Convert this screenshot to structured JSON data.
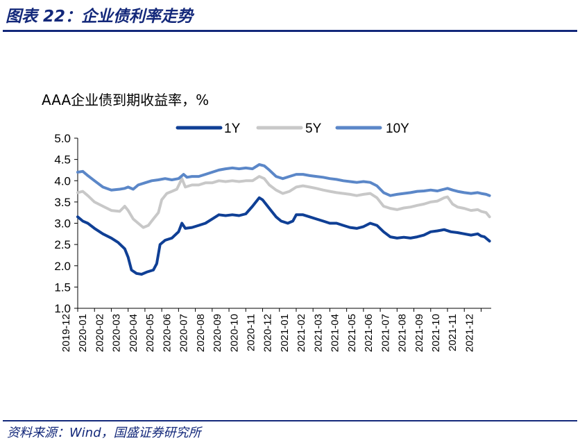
{
  "header": {
    "title": "图表 22：企业债利率走势"
  },
  "footer": {
    "source": "资料来源：Wind，国盛证券研究所"
  },
  "chart_data": {
    "type": "line",
    "title": "AAA企业债到期收益率，%",
    "ylim": [
      1.0,
      5.0
    ],
    "yticks": [
      "5.0",
      "4.5",
      "4.0",
      "3.5",
      "3.0",
      "2.5",
      "2.0",
      "1.5",
      "1.0"
    ],
    "ytick_values": [
      5.0,
      4.5,
      4.0,
      3.5,
      3.0,
      2.5,
      2.0,
      1.5,
      1.0
    ],
    "xticks": [
      "2019-12",
      "2020-01",
      "2020-02",
      "2020-03",
      "2020-04",
      "2020-05",
      "2020-06",
      "2020-07",
      "2020-08",
      "2020-09",
      "2020-10",
      "2020-11",
      "2020-12",
      "2021-01",
      "2021-02",
      "2021-03",
      "2021-04",
      "2021-05",
      "2021-06",
      "2021-07",
      "2021-08",
      "2021-09",
      "2021-10",
      "2021-11",
      "2021-12"
    ],
    "x_range": [
      0,
      24.6
    ],
    "legend_position": "top",
    "series": [
      {
        "name": "1Y",
        "color": "#0f3f95",
        "points": [
          [
            0,
            3.15
          ],
          [
            0.3,
            3.05
          ],
          [
            0.6,
            3.0
          ],
          [
            1.0,
            2.88
          ],
          [
            1.5,
            2.75
          ],
          [
            2.0,
            2.65
          ],
          [
            2.4,
            2.55
          ],
          [
            2.8,
            2.4
          ],
          [
            3.0,
            2.2
          ],
          [
            3.2,
            1.9
          ],
          [
            3.5,
            1.82
          ],
          [
            3.8,
            1.8
          ],
          [
            4.1,
            1.85
          ],
          [
            4.5,
            1.9
          ],
          [
            4.7,
            2.05
          ],
          [
            4.9,
            2.5
          ],
          [
            5.2,
            2.6
          ],
          [
            5.6,
            2.65
          ],
          [
            6.0,
            2.8
          ],
          [
            6.2,
            3.0
          ],
          [
            6.4,
            2.88
          ],
          [
            6.8,
            2.9
          ],
          [
            7.2,
            2.95
          ],
          [
            7.6,
            3.0
          ],
          [
            8.0,
            3.1
          ],
          [
            8.4,
            3.2
          ],
          [
            8.8,
            3.18
          ],
          [
            9.2,
            3.2
          ],
          [
            9.6,
            3.18
          ],
          [
            10.0,
            3.22
          ],
          [
            10.4,
            3.4
          ],
          [
            10.8,
            3.6
          ],
          [
            11.0,
            3.55
          ],
          [
            11.2,
            3.45
          ],
          [
            11.5,
            3.3
          ],
          [
            11.8,
            3.15
          ],
          [
            12.1,
            3.05
          ],
          [
            12.5,
            3.0
          ],
          [
            12.8,
            3.05
          ],
          [
            13.0,
            3.2
          ],
          [
            13.4,
            3.2
          ],
          [
            13.8,
            3.15
          ],
          [
            14.2,
            3.1
          ],
          [
            14.6,
            3.05
          ],
          [
            15.0,
            3.0
          ],
          [
            15.4,
            3.0
          ],
          [
            15.8,
            2.95
          ],
          [
            16.2,
            2.9
          ],
          [
            16.6,
            2.88
          ],
          [
            17.0,
            2.92
          ],
          [
            17.4,
            3.0
          ],
          [
            17.8,
            2.95
          ],
          [
            18.2,
            2.8
          ],
          [
            18.6,
            2.68
          ],
          [
            19.0,
            2.65
          ],
          [
            19.4,
            2.67
          ],
          [
            19.8,
            2.65
          ],
          [
            20.2,
            2.68
          ],
          [
            20.6,
            2.72
          ],
          [
            21.0,
            2.8
          ],
          [
            21.4,
            2.82
          ],
          [
            21.8,
            2.85
          ],
          [
            22.2,
            2.8
          ],
          [
            22.6,
            2.78
          ],
          [
            23.0,
            2.75
          ],
          [
            23.4,
            2.72
          ],
          [
            23.8,
            2.75
          ],
          [
            24.0,
            2.7
          ],
          [
            24.2,
            2.68
          ],
          [
            24.5,
            2.58
          ]
        ]
      },
      {
        "name": "5Y",
        "color": "#c8c8c8",
        "points": [
          [
            0,
            3.72
          ],
          [
            0.3,
            3.75
          ],
          [
            0.6,
            3.65
          ],
          [
            1.0,
            3.5
          ],
          [
            1.5,
            3.4
          ],
          [
            2.0,
            3.3
          ],
          [
            2.5,
            3.28
          ],
          [
            2.8,
            3.4
          ],
          [
            3.0,
            3.3
          ],
          [
            3.3,
            3.1
          ],
          [
            3.6,
            3.0
          ],
          [
            3.9,
            2.9
          ],
          [
            4.2,
            2.95
          ],
          [
            4.5,
            3.1
          ],
          [
            4.8,
            3.25
          ],
          [
            5.0,
            3.55
          ],
          [
            5.3,
            3.7
          ],
          [
            5.6,
            3.75
          ],
          [
            5.9,
            3.8
          ],
          [
            6.2,
            4.05
          ],
          [
            6.4,
            3.85
          ],
          [
            6.8,
            3.9
          ],
          [
            7.2,
            3.9
          ],
          [
            7.6,
            3.95
          ],
          [
            8.0,
            3.95
          ],
          [
            8.4,
            4.0
          ],
          [
            8.8,
            3.98
          ],
          [
            9.2,
            4.0
          ],
          [
            9.6,
            3.98
          ],
          [
            10.0,
            4.0
          ],
          [
            10.4,
            4.0
          ],
          [
            10.8,
            4.1
          ],
          [
            11.1,
            4.05
          ],
          [
            11.4,
            3.9
          ],
          [
            11.8,
            3.78
          ],
          [
            12.2,
            3.7
          ],
          [
            12.6,
            3.75
          ],
          [
            13.0,
            3.85
          ],
          [
            13.4,
            3.88
          ],
          [
            13.8,
            3.85
          ],
          [
            14.2,
            3.82
          ],
          [
            14.6,
            3.78
          ],
          [
            15.0,
            3.75
          ],
          [
            15.4,
            3.72
          ],
          [
            15.8,
            3.7
          ],
          [
            16.2,
            3.68
          ],
          [
            16.6,
            3.65
          ],
          [
            17.0,
            3.68
          ],
          [
            17.4,
            3.7
          ],
          [
            17.8,
            3.6
          ],
          [
            18.2,
            3.4
          ],
          [
            18.6,
            3.35
          ],
          [
            19.0,
            3.32
          ],
          [
            19.4,
            3.36
          ],
          [
            19.8,
            3.38
          ],
          [
            20.2,
            3.42
          ],
          [
            20.6,
            3.45
          ],
          [
            21.0,
            3.5
          ],
          [
            21.4,
            3.52
          ],
          [
            21.8,
            3.6
          ],
          [
            22.0,
            3.62
          ],
          [
            22.3,
            3.45
          ],
          [
            22.6,
            3.38
          ],
          [
            23.0,
            3.35
          ],
          [
            23.4,
            3.3
          ],
          [
            23.8,
            3.32
          ],
          [
            24.0,
            3.28
          ],
          [
            24.3,
            3.25
          ],
          [
            24.5,
            3.15
          ]
        ]
      },
      {
        "name": "10Y",
        "color": "#5b87c8",
        "points": [
          [
            0,
            4.2
          ],
          [
            0.3,
            4.22
          ],
          [
            0.6,
            4.12
          ],
          [
            1.0,
            4.0
          ],
          [
            1.5,
            3.85
          ],
          [
            2.0,
            3.78
          ],
          [
            2.5,
            3.8
          ],
          [
            2.8,
            3.82
          ],
          [
            3.0,
            3.85
          ],
          [
            3.3,
            3.8
          ],
          [
            3.6,
            3.9
          ],
          [
            4.0,
            3.95
          ],
          [
            4.4,
            4.0
          ],
          [
            4.8,
            4.02
          ],
          [
            5.2,
            4.05
          ],
          [
            5.6,
            4.02
          ],
          [
            6.0,
            4.05
          ],
          [
            6.3,
            4.15
          ],
          [
            6.5,
            4.08
          ],
          [
            6.8,
            4.1
          ],
          [
            7.2,
            4.1
          ],
          [
            7.6,
            4.15
          ],
          [
            8.0,
            4.2
          ],
          [
            8.4,
            4.25
          ],
          [
            8.8,
            4.28
          ],
          [
            9.2,
            4.3
          ],
          [
            9.6,
            4.28
          ],
          [
            10.0,
            4.3
          ],
          [
            10.4,
            4.28
          ],
          [
            10.8,
            4.38
          ],
          [
            11.1,
            4.35
          ],
          [
            11.4,
            4.25
          ],
          [
            11.8,
            4.1
          ],
          [
            12.2,
            4.05
          ],
          [
            12.6,
            4.1
          ],
          [
            13.0,
            4.15
          ],
          [
            13.4,
            4.15
          ],
          [
            13.8,
            4.12
          ],
          [
            14.2,
            4.1
          ],
          [
            14.6,
            4.08
          ],
          [
            15.0,
            4.05
          ],
          [
            15.4,
            4.03
          ],
          [
            15.8,
            4.0
          ],
          [
            16.2,
            3.98
          ],
          [
            16.6,
            3.96
          ],
          [
            17.0,
            3.98
          ],
          [
            17.4,
            3.96
          ],
          [
            17.8,
            3.88
          ],
          [
            18.2,
            3.72
          ],
          [
            18.6,
            3.65
          ],
          [
            19.0,
            3.68
          ],
          [
            19.4,
            3.7
          ],
          [
            19.8,
            3.72
          ],
          [
            20.2,
            3.75
          ],
          [
            20.6,
            3.76
          ],
          [
            21.0,
            3.78
          ],
          [
            21.4,
            3.76
          ],
          [
            21.8,
            3.8
          ],
          [
            22.0,
            3.82
          ],
          [
            22.3,
            3.78
          ],
          [
            22.6,
            3.75
          ],
          [
            23.0,
            3.72
          ],
          [
            23.4,
            3.7
          ],
          [
            23.8,
            3.72
          ],
          [
            24.0,
            3.7
          ],
          [
            24.3,
            3.68
          ],
          [
            24.5,
            3.65
          ]
        ]
      }
    ]
  }
}
